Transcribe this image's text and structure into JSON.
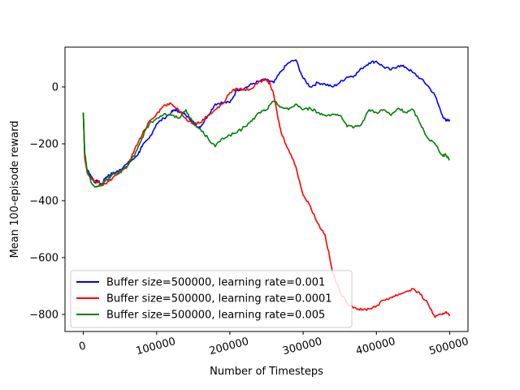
{
  "chart_data": {
    "type": "line",
    "title": "",
    "xlabel": "Number of Timesteps",
    "ylabel": "Mean 100-episode reward",
    "xlim": [
      -25000,
      525000
    ],
    "ylim": [
      -860,
      140
    ],
    "x_ticks": [
      {
        "value": 0,
        "label": "0"
      },
      {
        "value": 100000,
        "label": "100000"
      },
      {
        "value": 200000,
        "label": "200000"
      },
      {
        "value": 300000,
        "label": "300000"
      },
      {
        "value": 400000,
        "label": "400000"
      },
      {
        "value": 500000,
        "label": "500000"
      }
    ],
    "y_ticks": [
      {
        "value": 0,
        "label": "0"
      },
      {
        "value": -200,
        "label": "−200"
      },
      {
        "value": -400,
        "label": "−400"
      },
      {
        "value": -600,
        "label": "−600"
      },
      {
        "value": -800,
        "label": "−800"
      }
    ],
    "grid": false,
    "legend_position": "lower-left",
    "series": [
      {
        "name": "Buffer size=500000, learning rate=0.001",
        "color": "#0000ff",
        "x": [
          0,
          2000,
          5000,
          10000,
          15000,
          20000,
          25000,
          30000,
          35000,
          40000,
          45000,
          50000,
          60000,
          70000,
          75000,
          80000,
          90000,
          100000,
          110000,
          120000,
          125000,
          130000,
          140000,
          150000,
          155000,
          160000,
          170000,
          180000,
          190000,
          200000,
          210000,
          220000,
          230000,
          240000,
          250000,
          260000,
          270000,
          280000,
          290000,
          300000,
          310000,
          320000,
          330000,
          340000,
          350000,
          360000,
          370000,
          380000,
          390000,
          400000,
          410000,
          420000,
          430000,
          440000,
          450000,
          460000,
          470000,
          480000,
          490000,
          495000,
          500000
        ],
        "y": [
          -90,
          -250,
          -290,
          -310,
          -335,
          -330,
          -345,
          -320,
          -310,
          -305,
          -300,
          -290,
          -270,
          -250,
          -235,
          -210,
          -180,
          -130,
          -110,
          -90,
          -80,
          -85,
          -100,
          -120,
          -140,
          -140,
          -100,
          -60,
          -55,
          -55,
          -10,
          -5,
          10,
          20,
          25,
          15,
          55,
          85,
          95,
          30,
          0,
          15,
          10,
          0,
          15,
          35,
          40,
          65,
          85,
          90,
          70,
          60,
          75,
          70,
          50,
          30,
          5,
          -30,
          -100,
          -120,
          -115
        ]
      },
      {
        "name": "Buffer size=500000, learning rate=0.0001",
        "color": "#ff0000",
        "x": [
          0,
          2000,
          5000,
          10000,
          15000,
          20000,
          25000,
          30000,
          35000,
          40000,
          50000,
          60000,
          70000,
          80000,
          90000,
          100000,
          110000,
          120000,
          130000,
          140000,
          150000,
          160000,
          170000,
          180000,
          190000,
          200000,
          210000,
          220000,
          230000,
          240000,
          250000,
          255000,
          260000,
          265000,
          270000,
          280000,
          290000,
          300000,
          310000,
          320000,
          330000,
          340000,
          350000,
          360000,
          370000,
          380000,
          390000,
          400000,
          410000,
          420000,
          430000,
          440000,
          450000,
          460000,
          470000,
          480000,
          490000,
          495000,
          500000
        ],
        "y": [
          -90,
          -250,
          -300,
          -320,
          -330,
          -335,
          -345,
          -340,
          -330,
          -320,
          -300,
          -280,
          -220,
          -170,
          -120,
          -95,
          -65,
          -60,
          -80,
          -110,
          -130,
          -125,
          -100,
          -80,
          -60,
          -20,
          -5,
          -10,
          -5,
          20,
          25,
          10,
          -30,
          -100,
          -160,
          -220,
          -280,
          -380,
          -420,
          -480,
          -520,
          -650,
          -720,
          -760,
          -775,
          -785,
          -780,
          -770,
          -750,
          -740,
          -730,
          -720,
          -710,
          -730,
          -760,
          -810,
          -800,
          -790,
          -800
        ]
      },
      {
        "name": "Buffer size=500000, learning rate=0.005",
        "color": "#008000",
        "x": [
          0,
          2000,
          5000,
          10000,
          15000,
          20000,
          25000,
          30000,
          35000,
          40000,
          50000,
          60000,
          70000,
          80000,
          90000,
          100000,
          110000,
          120000,
          130000,
          140000,
          150000,
          160000,
          170000,
          180000,
          190000,
          200000,
          210000,
          220000,
          230000,
          240000,
          250000,
          260000,
          270000,
          280000,
          290000,
          300000,
          310000,
          320000,
          330000,
          340000,
          350000,
          360000,
          370000,
          380000,
          390000,
          400000,
          410000,
          420000,
          430000,
          440000,
          450000,
          460000,
          470000,
          480000,
          490000,
          495000,
          500000
        ],
        "y": [
          -90,
          -230,
          -290,
          -330,
          -350,
          -350,
          -345,
          -330,
          -320,
          -305,
          -300,
          -280,
          -240,
          -180,
          -130,
          -110,
          -95,
          -100,
          -110,
          -80,
          -130,
          -150,
          -180,
          -210,
          -180,
          -170,
          -160,
          -140,
          -120,
          -90,
          -80,
          -50,
          -70,
          -80,
          -60,
          -80,
          -75,
          -90,
          -100,
          -95,
          -100,
          -140,
          -140,
          -130,
          -80,
          -90,
          -80,
          -100,
          -75,
          -90,
          -80,
          -130,
          -180,
          -200,
          -240,
          -240,
          -255
        ]
      }
    ]
  }
}
